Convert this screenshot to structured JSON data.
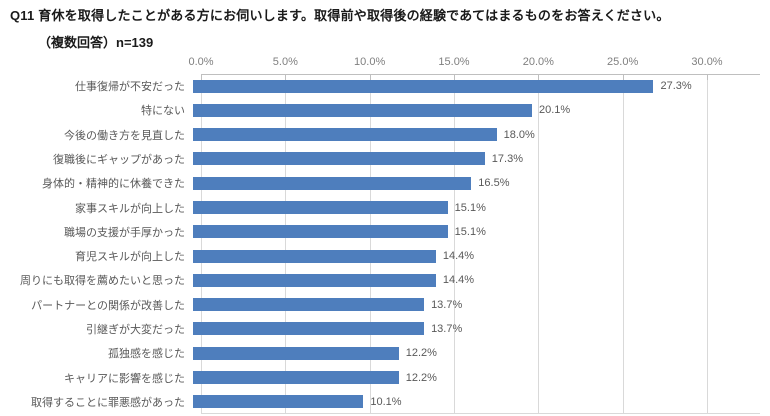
{
  "title": {
    "line1": "Q11 育休を取得したことがある方にお伺いします。取得前や取得後の経験であてはまるものをお答えください。",
    "line2": "（複数回答）n=139"
  },
  "colors": {
    "background": "#FFFFFF",
    "bar": "#4E7EBD",
    "title_text": "#1A1A1A",
    "label_text": "#595959",
    "axis_text": "#7F7F7F",
    "gridline": "#D9D9D9",
    "axis_line": "#BFBFBF"
  },
  "chart_data": {
    "type": "bar",
    "orientation": "horizontal",
    "title": "Q11 育休を取得したことがある方にお伺いします。取得前や取得後の経験であてはまるものをお答えください。（複数回答）n=139",
    "sample_size": "n=139",
    "legend": false,
    "grid": true,
    "x_axis": {
      "position": "top",
      "min": 0,
      "max": 30,
      "tick_step": 5,
      "unit": "%",
      "ticks": [
        "0.0%",
        "5.0%",
        "10.0%",
        "15.0%",
        "20.0%",
        "25.0%",
        "30.0%"
      ]
    },
    "categories": [
      "仕事復帰が不安だった",
      "特にない",
      "今後の働き方を見直した",
      "復職後にギャップがあった",
      "身体的・精神的に休養できた",
      "家事スキルが向上した",
      "職場の支援が手厚かった",
      "育児スキルが向上した",
      "周りにも取得を薦めたいと思った",
      "パートナーとの関係が改善した",
      "引継ぎが大変だった",
      "孤独感を感じた",
      "キャリアに影響を感じた",
      "取得することに罪悪感があった"
    ],
    "values": [
      27.3,
      20.1,
      18.0,
      17.3,
      16.5,
      15.1,
      15.1,
      14.4,
      14.4,
      13.7,
      13.7,
      12.2,
      12.2,
      10.1
    ],
    "value_labels": [
      "27.3%",
      "20.1%",
      "18.0%",
      "17.3%",
      "16.5%",
      "15.1%",
      "15.1%",
      "14.4%",
      "14.4%",
      "13.7%",
      "13.7%",
      "12.2%",
      "12.2%",
      "10.1%"
    ]
  }
}
